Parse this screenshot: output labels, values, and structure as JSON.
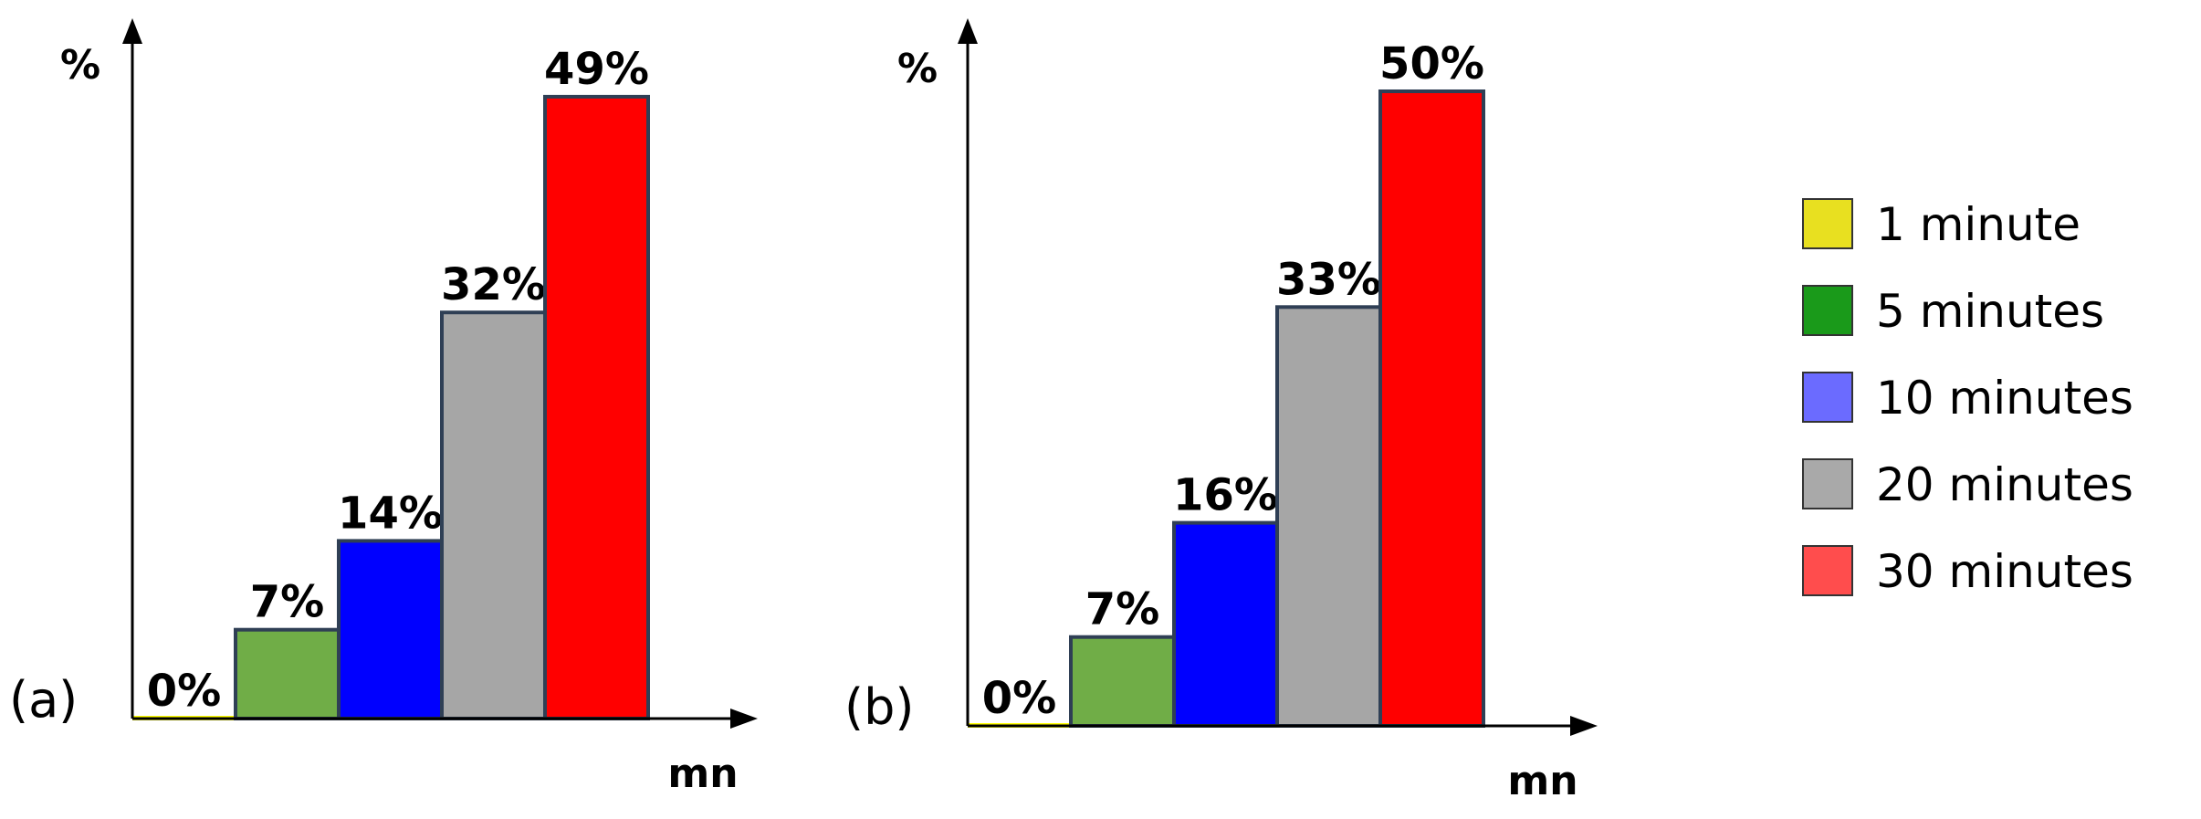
{
  "chart_data": [
    {
      "type": "bar",
      "panel_label": "(a)",
      "ylabel": "%",
      "xlabel": "mn",
      "categories": [
        "1 minute",
        "5 minutes",
        "10 minutes",
        "20 minutes",
        "30 minutes"
      ],
      "values": [
        0,
        7,
        14,
        32,
        49
      ],
      "value_labels": [
        "0%",
        "7%",
        "14%",
        "32%",
        "49%"
      ],
      "colors": [
        "#ffff00",
        "#70ad47",
        "#0000ff",
        "#a6a6a6",
        "#ff0000"
      ],
      "ylim": [
        0,
        60
      ],
      "grid": false
    },
    {
      "type": "bar",
      "panel_label": "(b)",
      "ylabel": "%",
      "xlabel": "mn",
      "categories": [
        "1 minute",
        "5 minutes",
        "10 minutes",
        "20 minutes",
        "30 minutes"
      ],
      "values": [
        0,
        7,
        16,
        33,
        50
      ],
      "value_labels": [
        "0%",
        "7%",
        "16%",
        "33%",
        "50%"
      ],
      "colors": [
        "#ffff00",
        "#70ad47",
        "#0000ff",
        "#a6a6a6",
        "#ff0000"
      ],
      "ylim": [
        0,
        60
      ],
      "grid": false
    }
  ],
  "legend": {
    "placement": "right",
    "items": [
      {
        "label": "1 minute",
        "color": "#e8e020"
      },
      {
        "label": "5 minutes",
        "color": "#1a9a1a"
      },
      {
        "label": "10 minutes",
        "color": "#6b6bff"
      },
      {
        "label": "20 minutes",
        "color": "#a9a9a9"
      },
      {
        "label": "30 minutes",
        "color": "#ff4d4d"
      }
    ]
  }
}
